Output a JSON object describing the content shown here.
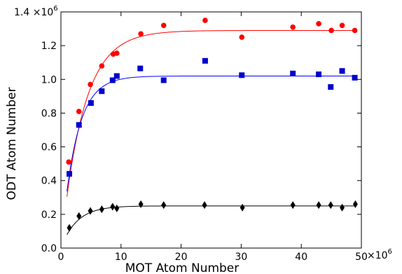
{
  "chart_data": {
    "type": "scatter",
    "xlabel": "MOT Atom Number",
    "ylabel": "ODT Atom Number",
    "x_multiplier": "×10",
    "x_multiplier_exp": "6",
    "y_multiplier": "1.4 ×10",
    "y_multiplier_exp": "6",
    "xlim": [
      0,
      50
    ],
    "ylim": [
      0.0,
      1.4
    ],
    "x_ticks": [
      0,
      10,
      20,
      30,
      40,
      50
    ],
    "x_tick_labels": [
      "0",
      "10",
      "20",
      "30",
      "40",
      "50"
    ],
    "y_ticks": [
      0.0,
      0.2,
      0.4,
      0.6,
      0.8,
      1.0,
      1.2
    ],
    "y_tick_labels": [
      "0.0",
      "0.2",
      "0.4",
      "0.6",
      "0.8",
      "1.0",
      "1.2"
    ],
    "grid": false,
    "series": [
      {
        "marker": "circle",
        "color": "#ff0000",
        "x": [
          1.3,
          3.0,
          4.9,
          6.8,
          8.7,
          9.3,
          13.3,
          17.1,
          24.0,
          30.1,
          38.6,
          42.9,
          45.0,
          46.8,
          48.9
        ],
        "y": [
          0.51,
          0.81,
          0.97,
          1.08,
          1.15,
          1.155,
          1.27,
          1.32,
          1.35,
          1.25,
          1.31,
          1.33,
          1.29,
          1.32,
          1.29
        ],
        "fit": {
          "plateau": 1.29,
          "rate": 0.27,
          "color": "#ff0000"
        }
      },
      {
        "marker": "square",
        "color": "#0000cc",
        "x": [
          1.4,
          3.0,
          5.0,
          6.8,
          8.6,
          9.3,
          13.2,
          17.1,
          24.0,
          30.1,
          38.6,
          42.9,
          44.9,
          46.8,
          48.9
        ],
        "y": [
          0.44,
          0.73,
          0.86,
          0.93,
          0.995,
          1.02,
          1.065,
          0.995,
          1.11,
          1.025,
          1.035,
          1.03,
          0.955,
          1.05,
          1.01
        ],
        "fit": {
          "plateau": 1.02,
          "rate": 0.4,
          "color": "#0000ff"
        }
      },
      {
        "marker": "diamond",
        "color": "#000000",
        "x": [
          1.4,
          3.0,
          4.9,
          6.8,
          8.6,
          9.3,
          13.3,
          17.1,
          23.9,
          30.2,
          38.6,
          42.9,
          44.9,
          46.8,
          49.0
        ],
        "y": [
          0.12,
          0.19,
          0.22,
          0.23,
          0.245,
          0.235,
          0.26,
          0.255,
          0.255,
          0.24,
          0.255,
          0.255,
          0.255,
          0.24,
          0.26
        ],
        "fit": {
          "plateau": 0.25,
          "rate": 0.38,
          "color": "#000000"
        }
      }
    ]
  }
}
